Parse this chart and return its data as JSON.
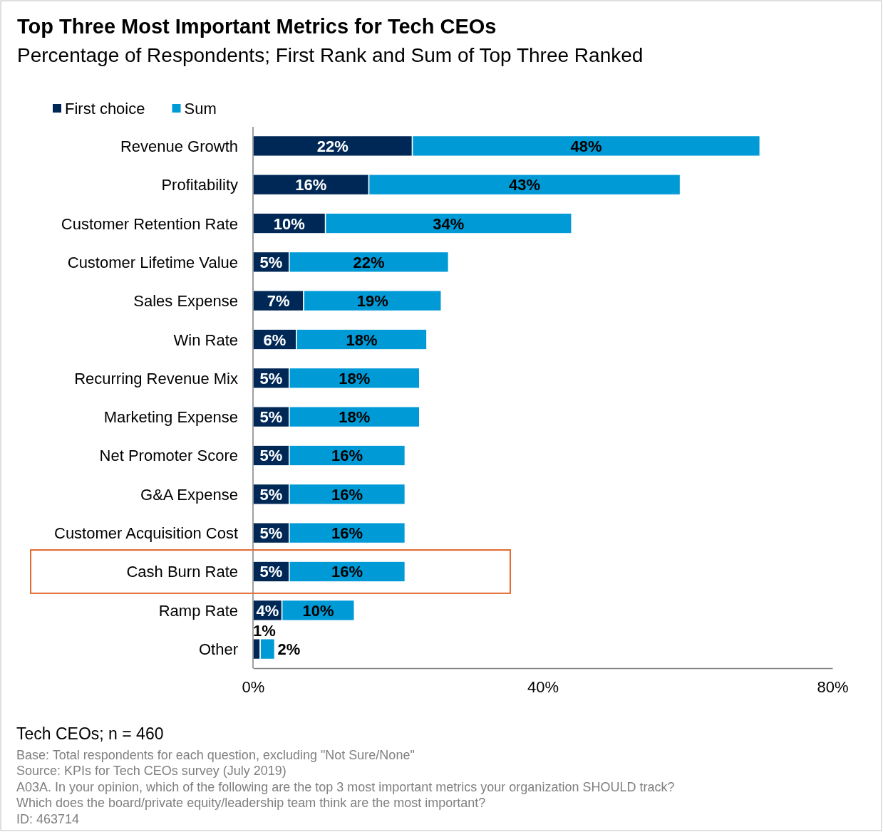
{
  "chart_data": {
    "type": "bar",
    "orientation": "horizontal",
    "stacked": true,
    "title": "Top Three Most Important Metrics for Tech CEOs",
    "subtitle": "Percentage of Respondents; First Rank and Sum of Top Three Ranked",
    "categories": [
      "Revenue Growth",
      "Profitability",
      "Customer Retention Rate",
      "Customer Lifetime Value",
      "Sales Expense",
      "Win Rate",
      "Recurring Revenue Mix",
      "Marketing Expense",
      "Net Promoter Score",
      "G&A Expense",
      "Customer Acquisition Cost",
      "Cash Burn Rate",
      "Ramp Rate",
      "Other"
    ],
    "series": [
      {
        "name": "First choice",
        "color": "#002856",
        "values": [
          22,
          16,
          10,
          5,
          7,
          6,
          5,
          5,
          5,
          5,
          5,
          5,
          4,
          1
        ],
        "value_labels": [
          "22%",
          "16%",
          "10%",
          "5%",
          "7%",
          "6%",
          "5%",
          "5%",
          "5%",
          "5%",
          "5%",
          "5%",
          "4%",
          "1%"
        ]
      },
      {
        "name": "Sum",
        "color": "#009ad7",
        "values": [
          48,
          43,
          34,
          22,
          19,
          18,
          18,
          18,
          16,
          16,
          16,
          16,
          10,
          2
        ],
        "value_labels": [
          "48%",
          "43%",
          "34%",
          "22%",
          "19%",
          "18%",
          "18%",
          "18%",
          "16%",
          "16%",
          "16%",
          "16%",
          "10%",
          "2%"
        ]
      }
    ],
    "xlim": [
      0,
      80
    ],
    "xticks": [
      {
        "value": 0,
        "label": "0%"
      },
      {
        "value": 40,
        "label": "40%"
      },
      {
        "value": 80,
        "label": "80%"
      }
    ],
    "legend": "top left",
    "annotations": [
      "Tech CEOs; n = 460",
      "Base: Total respondents for each question, excluding \"Not Sure/None\"",
      "Source: KPIs for Tech CEOs survey (July 2019)",
      "A03A. In your opinion, which of the following are the top 3 most important metrics your organization SHOULD track?",
      "Which does the board/private equity/leadership team think are the most important?",
      "ID: 463714"
    ]
  }
}
